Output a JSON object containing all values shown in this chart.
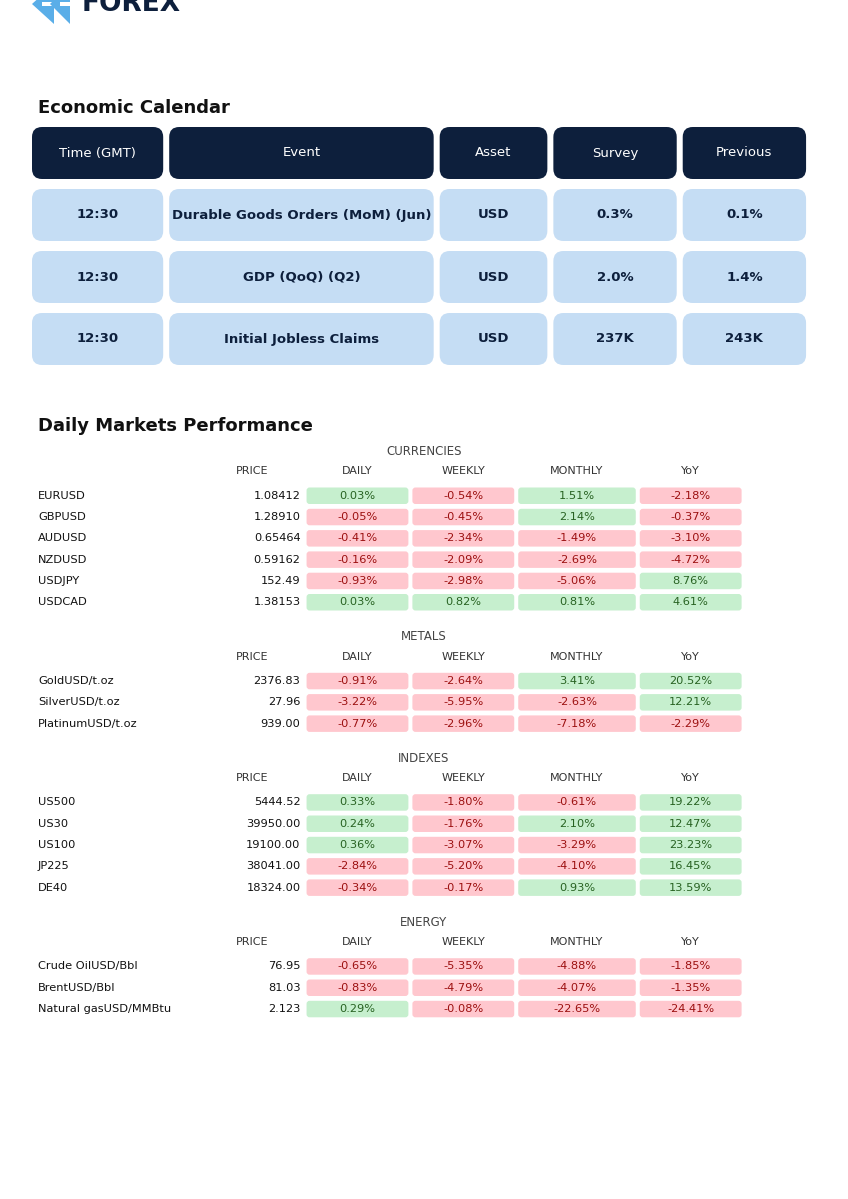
{
  "title_logo": "FOREX",
  "section1_title": "Economic Calendar",
  "cal_headers": [
    "Time (GMT)",
    "Event",
    "Asset",
    "Survey",
    "Previous"
  ],
  "cal_rows": [
    [
      "12:30",
      "Durable Goods Orders (MoM) (Jun)",
      "USD",
      "0.3%",
      "0.1%"
    ],
    [
      "12:30",
      "GDP (QoQ) (Q2)",
      "USD",
      "2.0%",
      "1.4%"
    ],
    [
      "12:30",
      "Initial Jobless Claims",
      "USD",
      "237K",
      "243K"
    ]
  ],
  "section2_title": "Daily Markets Performance",
  "markets": {
    "CURRENCIES": {
      "headers": [
        "PRICE",
        "DAILY",
        "WEEKLY",
        "MONTHLY",
        "YoY"
      ],
      "rows": [
        [
          "EURUSD",
          "1.08412",
          "0.03%",
          "-0.54%",
          "1.51%",
          "-2.18%"
        ],
        [
          "GBPUSD",
          "1.28910",
          "-0.05%",
          "-0.45%",
          "2.14%",
          "-0.37%"
        ],
        [
          "AUDUSD",
          "0.65464",
          "-0.41%",
          "-2.34%",
          "-1.49%",
          "-3.10%"
        ],
        [
          "NZDUSD",
          "0.59162",
          "-0.16%",
          "-2.09%",
          "-2.69%",
          "-4.72%"
        ],
        [
          "USDJPY",
          "152.49",
          "-0.93%",
          "-2.98%",
          "-5.06%",
          "8.76%"
        ],
        [
          "USDCAD",
          "1.38153",
          "0.03%",
          "0.82%",
          "0.81%",
          "4.61%"
        ]
      ]
    },
    "METALS": {
      "headers": [
        "PRICE",
        "DAILY",
        "WEEKLY",
        "MONTHLY",
        "YoY"
      ],
      "rows": [
        [
          "GoldUSD/t.oz",
          "2376.83",
          "-0.91%",
          "-2.64%",
          "3.41%",
          "20.52%"
        ],
        [
          "SilverUSD/t.oz",
          "27.96",
          "-3.22%",
          "-5.95%",
          "-2.63%",
          "12.21%"
        ],
        [
          "PlatinumUSD/t.oz",
          "939.00",
          "-0.77%",
          "-2.96%",
          "-7.18%",
          "-2.29%"
        ]
      ]
    },
    "INDEXES": {
      "headers": [
        "PRICE",
        "DAILY",
        "WEEKLY",
        "MONTHLY",
        "YoY"
      ],
      "rows": [
        [
          "US500",
          "5444.52",
          "0.33%",
          "-1.80%",
          "-0.61%",
          "19.22%"
        ],
        [
          "US30",
          "39950.00",
          "0.24%",
          "-1.76%",
          "2.10%",
          "12.47%"
        ],
        [
          "US100",
          "19100.00",
          "0.36%",
          "-3.07%",
          "-3.29%",
          "23.23%"
        ],
        [
          "JP225",
          "38041.00",
          "-2.84%",
          "-5.20%",
          "-4.10%",
          "16.45%"
        ],
        [
          "DE40",
          "18324.00",
          "-0.34%",
          "-0.17%",
          "0.93%",
          "13.59%"
        ]
      ]
    },
    "ENERGY": {
      "headers": [
        "PRICE",
        "DAILY",
        "WEEKLY",
        "MONTHLY",
        "YoY"
      ],
      "rows": [
        [
          "Crude OilUSD/Bbl",
          "76.95",
          "-0.65%",
          "-5.35%",
          "-4.88%",
          "-1.85%"
        ],
        [
          "BrentUSD/Bbl",
          "81.03",
          "-0.83%",
          "-4.79%",
          "-4.07%",
          "-1.35%"
        ],
        [
          "Natural gasUSD/MMBtu",
          "2.123",
          "0.29%",
          "-0.08%",
          "-22.65%",
          "-24.41%"
        ]
      ]
    }
  },
  "header_bg": "#0d1f3c",
  "header_fg": "#ffffff",
  "cell_bg": "#c5ddf4",
  "cell_fg": "#0d1f3c",
  "pos_color": "#c6efce",
  "neg_color": "#ffc7ce",
  "pos_text": "#276221",
  "neg_text": "#9c1010",
  "logo_color": "#0d1f3c",
  "logo_arrow_color": "#5aaee8",
  "fig_w": 8.48,
  "fig_h": 11.99,
  "dpi": 100
}
